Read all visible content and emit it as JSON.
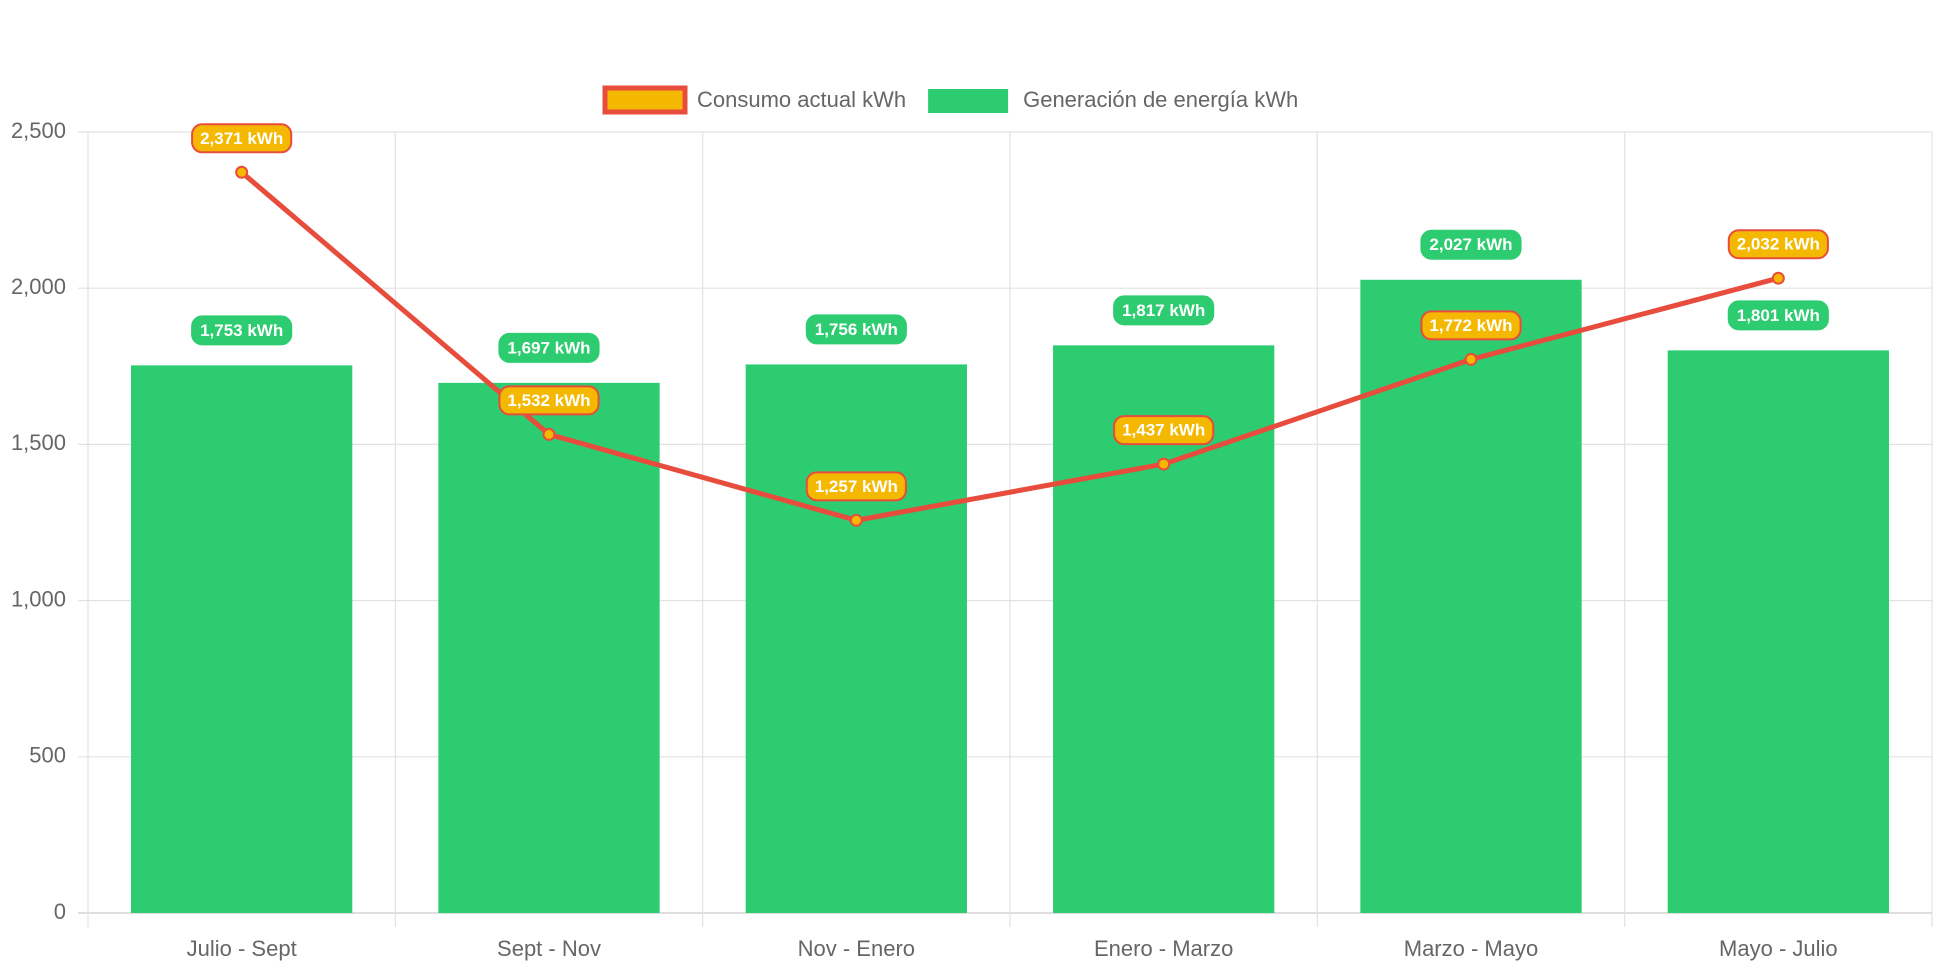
{
  "chart_data": {
    "type": "bar",
    "categories": [
      "Julio - Sept",
      "Sept - Nov",
      "Nov - Enero",
      "Enero - Marzo",
      "Marzo - Mayo",
      "Mayo - Julio"
    ],
    "series": [
      {
        "name": "Consumo actual kWh",
        "type": "line",
        "color": "#e74c3c",
        "point_color": "#f5b800",
        "values": [
          2371,
          1532,
          1257,
          1437,
          1772,
          2032
        ],
        "value_labels": [
          "2,371 kWh",
          "1,532 kWh",
          "1,257 kWh",
          "1,437 kWh",
          "1,772 kWh",
          "2,032 kWh"
        ]
      },
      {
        "name": "Generación de energía kWh",
        "type": "bar",
        "color": "#2ecc71",
        "values": [
          1753,
          1697,
          1756,
          1817,
          2027,
          1801
        ],
        "value_labels": [
          "1,753 kWh",
          "1,697 kWh",
          "1,756 kWh",
          "1,817 kWh",
          "2,027 kWh",
          "1,801 kWh"
        ]
      }
    ],
    "ylim": [
      0,
      2500
    ],
    "yticks": [
      0,
      500,
      {
        "value": 1000,
        "label": "1,000"
      },
      {
        "value": 1500,
        "label": "1,500"
      },
      {
        "value": 2000,
        "label": "2,000"
      },
      {
        "value": 2500,
        "label": "2,500"
      }
    ],
    "grid": true,
    "legend": "top"
  }
}
